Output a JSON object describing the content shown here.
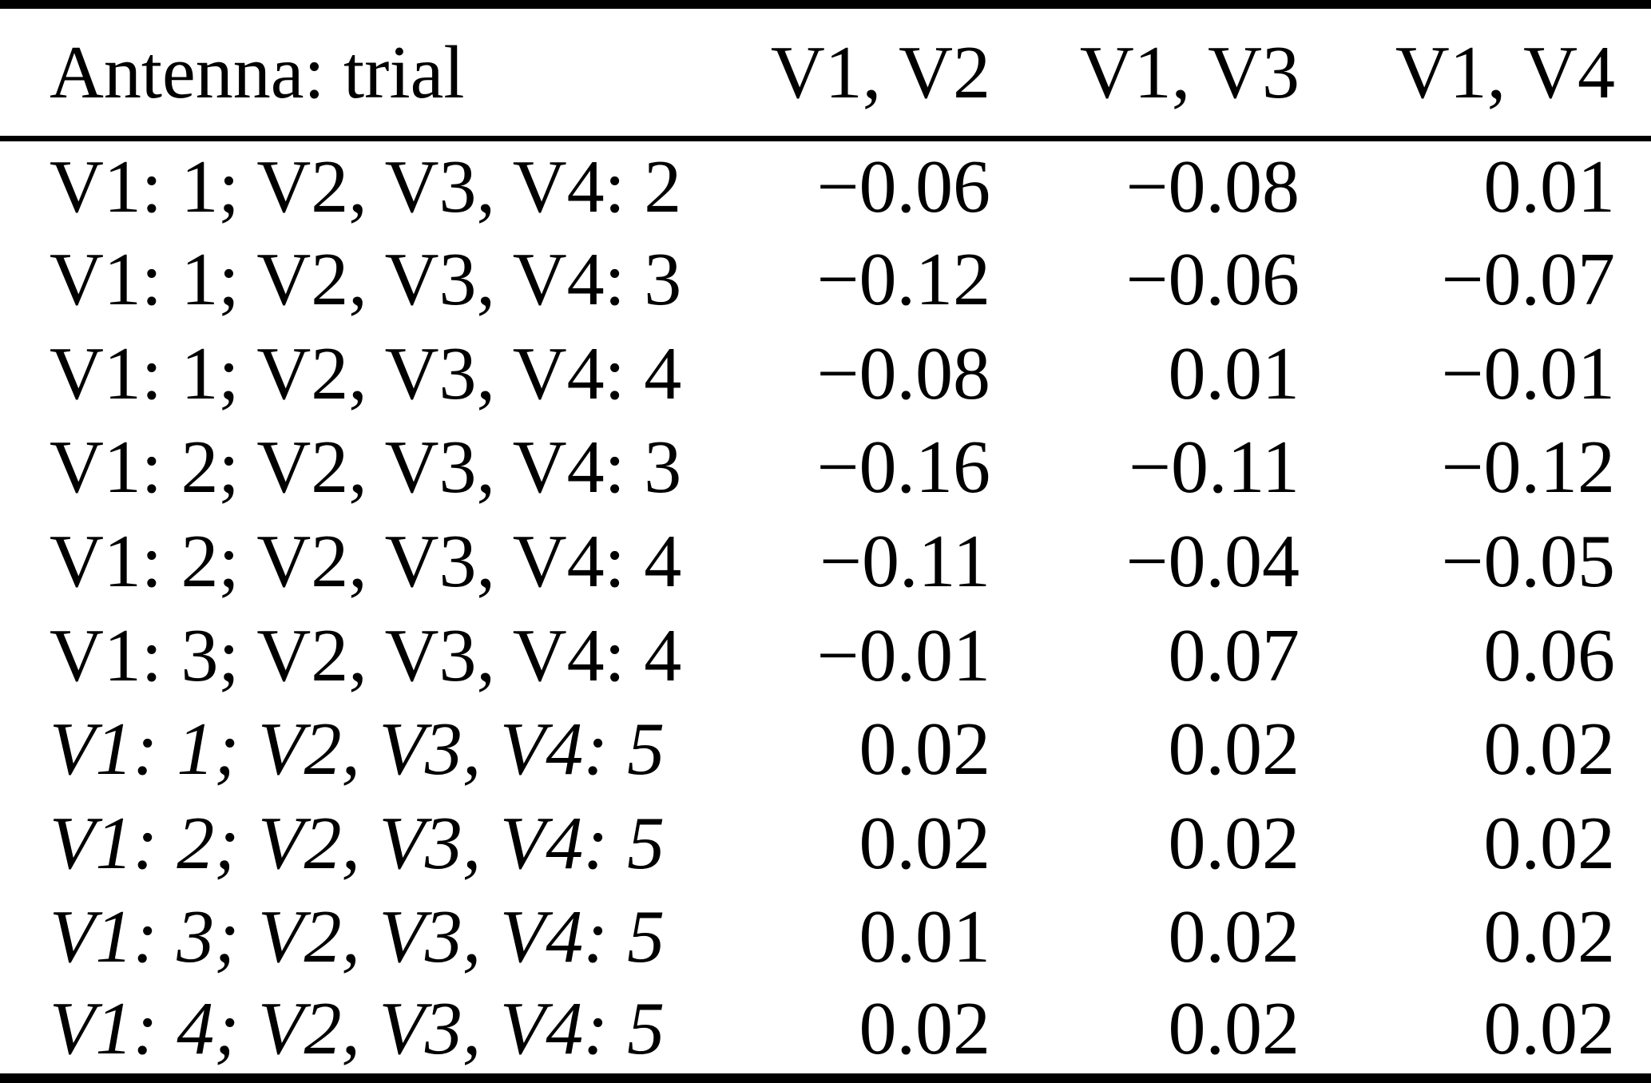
{
  "colors": {
    "background": "#ffffff",
    "text": "#000000",
    "rule": "#000000"
  },
  "table": {
    "columns": [
      "Antenna: trial",
      "V1, V2",
      "V1, V3",
      "V1, V4"
    ],
    "rows": [
      {
        "label": "V1: 1; V2, V3, V4: 2",
        "italic": false,
        "values": [
          "−0.06",
          "−0.08",
          "0.01"
        ]
      },
      {
        "label": "V1: 1; V2, V3, V4: 3",
        "italic": false,
        "values": [
          "−0.12",
          "−0.06",
          "−0.07"
        ]
      },
      {
        "label": "V1: 1; V2, V3, V4: 4",
        "italic": false,
        "values": [
          "−0.08",
          "0.01",
          "−0.01"
        ]
      },
      {
        "label": "V1: 2; V2, V3, V4: 3",
        "italic": false,
        "values": [
          "−0.16",
          "−0.11",
          "−0.12"
        ]
      },
      {
        "label": "V1: 2; V2, V3, V4: 4",
        "italic": false,
        "values": [
          "−0.11",
          "−0.04",
          "−0.05"
        ]
      },
      {
        "label": "V1: 3; V2, V3, V4: 4",
        "italic": false,
        "values": [
          "−0.01",
          "0.07",
          "0.06"
        ]
      },
      {
        "label": "V1: 1; V2, V3, V4: 5",
        "italic": true,
        "values": [
          "0.02",
          "0.02",
          "0.02"
        ]
      },
      {
        "label": "V1: 2; V2, V3, V4: 5",
        "italic": true,
        "values": [
          "0.02",
          "0.02",
          "0.02"
        ]
      },
      {
        "label": "V1: 3; V2, V3, V4: 5",
        "italic": true,
        "values": [
          "0.01",
          "0.02",
          "0.02"
        ]
      },
      {
        "label": "V1: 4; V2, V3, V4: 5",
        "italic": true,
        "values": [
          "0.02",
          "0.02",
          "0.02"
        ]
      }
    ]
  }
}
